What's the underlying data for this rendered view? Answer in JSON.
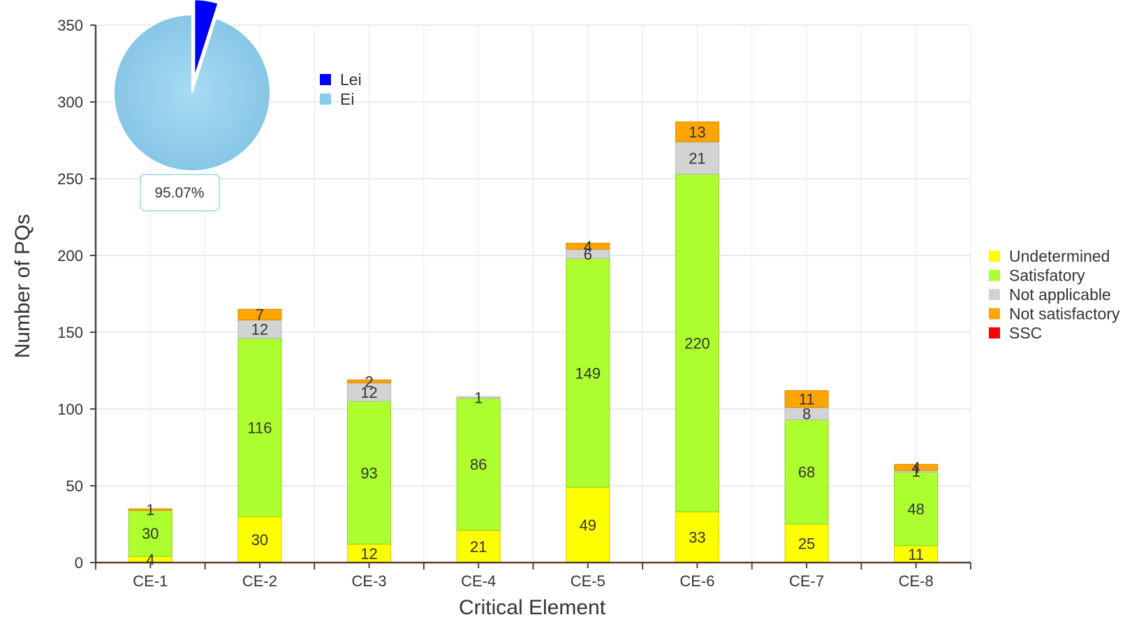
{
  "chart_data": {
    "type": "bar",
    "stacked": true,
    "xlabel": "Critical Element",
    "ylabel": "Number of PQs",
    "ylim": [
      0,
      350
    ],
    "yticks": [
      0,
      50,
      100,
      150,
      200,
      250,
      300,
      350
    ],
    "grid": true,
    "legend_position": "right",
    "categories": [
      "CE-1",
      "CE-2",
      "CE-3",
      "CE-4",
      "CE-5",
      "CE-6",
      "CE-7",
      "CE-8"
    ],
    "series": [
      {
        "name": "Undetermined",
        "color": "#ffff00",
        "values": [
          4,
          30,
          12,
          21,
          49,
          33,
          25,
          11
        ]
      },
      {
        "name": "Satisfatory",
        "color": "#adff2f",
        "values": [
          30,
          116,
          93,
          86,
          149,
          220,
          68,
          48
        ]
      },
      {
        "name": "Not applicable",
        "color": "#d3d3d3",
        "values": [
          0,
          12,
          12,
          1,
          6,
          21,
          8,
          1
        ]
      },
      {
        "name": "Not satisfactory",
        "color": "#ffa500",
        "values": [
          1,
          7,
          2,
          0,
          4,
          13,
          11,
          4
        ]
      },
      {
        "name": "SSC",
        "color": "#ff0000",
        "values": [
          0,
          0,
          0,
          0,
          0,
          0,
          0,
          0
        ]
      }
    ],
    "bar_labels": [
      [
        "4",
        "30",
        null,
        "1"
      ],
      [
        "30",
        "116",
        "12",
        "7"
      ],
      [
        "12",
        "93",
        "12",
        "2"
      ],
      [
        "21",
        "86",
        "1",
        null
      ],
      [
        "49",
        "149",
        "6",
        "4"
      ],
      [
        "33",
        "220",
        "21",
        "13"
      ],
      [
        "25",
        "68",
        "8",
        "11"
      ],
      [
        "11",
        "48",
        "1",
        "4"
      ]
    ],
    "inset_pie": {
      "slices": [
        {
          "name": "Lei",
          "value": 4.93,
          "color": "#0000ff"
        },
        {
          "name": "Ei",
          "value": 95.07,
          "color": "#87ceeb"
        }
      ],
      "label": "95.07%"
    }
  }
}
